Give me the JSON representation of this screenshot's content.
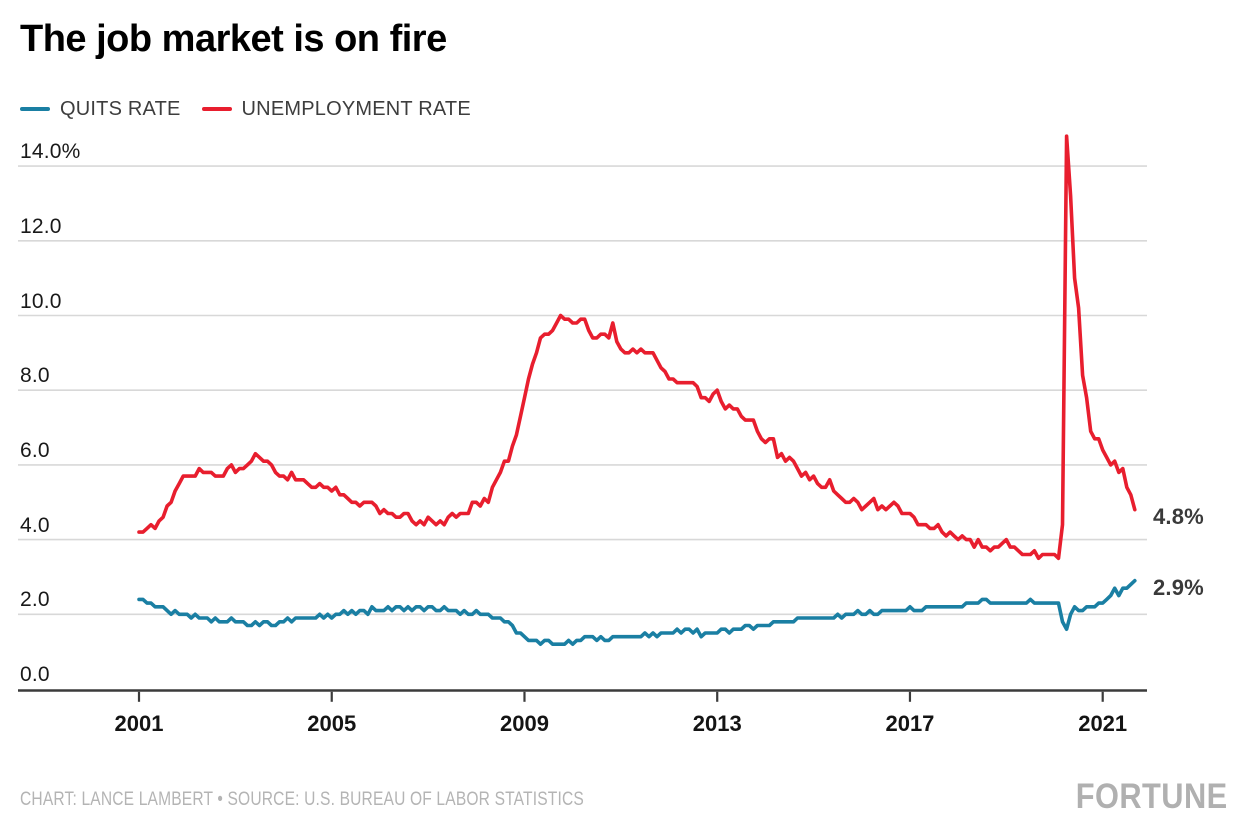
{
  "header": {
    "title": "The job market is on fire"
  },
  "footer": {
    "credit": "CHART: LANCE LAMBERT • SOURCE: U.S. BUREAU OF LABOR STATISTICS",
    "logo": "FORTUNE"
  },
  "colors": {
    "quits": "#1a7fa3",
    "unemployment": "#e81e2e",
    "grid": "#d8d8d8",
    "axis": "#3b3b3b",
    "end_label": "#3a3a3a",
    "title": "#000000",
    "footer_text": "#b4b4b4",
    "logo": "#b0b0b0"
  },
  "chart_data": {
    "type": "line",
    "title": "The job market is on fire",
    "xlabel": "",
    "ylabel": "",
    "grid": "horizontal",
    "legend_position": "top-left",
    "x_unit": "monthly, Jan 2001 – Sep 2021",
    "x_start_year": 2001,
    "x_ticks": [
      2001,
      2005,
      2009,
      2013,
      2017,
      2021
    ],
    "ylim": [
      0,
      14.9
    ],
    "y_ticks": [
      {
        "value": 14,
        "label": "14.0%"
      },
      {
        "value": 12,
        "label": "12.0"
      },
      {
        "value": 10,
        "label": "10.0"
      },
      {
        "value": 8,
        "label": "8.0"
      },
      {
        "value": 6,
        "label": "6.0"
      },
      {
        "value": 4,
        "label": "4.0"
      },
      {
        "value": 2,
        "label": "2.0"
      },
      {
        "value": 0,
        "label": "0.0"
      }
    ],
    "series": [
      {
        "id": "quits",
        "name": "QUITS RATE",
        "color": "#1a7fa3",
        "end_label": "2.9%",
        "values": [
          2.4,
          2.4,
          2.3,
          2.3,
          2.2,
          2.2,
          2.2,
          2.1,
          2.0,
          2.1,
          2.0,
          2.0,
          2.0,
          1.9,
          2.0,
          1.9,
          1.9,
          1.9,
          1.8,
          1.9,
          1.8,
          1.8,
          1.8,
          1.9,
          1.8,
          1.8,
          1.8,
          1.7,
          1.7,
          1.8,
          1.7,
          1.8,
          1.8,
          1.7,
          1.7,
          1.8,
          1.8,
          1.9,
          1.8,
          1.9,
          1.9,
          1.9,
          1.9,
          1.9,
          1.9,
          2.0,
          1.9,
          2.0,
          1.9,
          2.0,
          2.0,
          2.1,
          2.0,
          2.1,
          2.0,
          2.1,
          2.1,
          2.0,
          2.2,
          2.1,
          2.1,
          2.1,
          2.2,
          2.1,
          2.2,
          2.2,
          2.1,
          2.2,
          2.1,
          2.2,
          2.2,
          2.1,
          2.2,
          2.2,
          2.1,
          2.1,
          2.2,
          2.1,
          2.1,
          2.1,
          2.0,
          2.1,
          2.0,
          2.0,
          2.1,
          2.0,
          2.0,
          2.0,
          1.9,
          1.9,
          1.9,
          1.8,
          1.8,
          1.7,
          1.5,
          1.5,
          1.4,
          1.3,
          1.3,
          1.3,
          1.2,
          1.3,
          1.3,
          1.2,
          1.2,
          1.2,
          1.2,
          1.3,
          1.2,
          1.3,
          1.3,
          1.4,
          1.4,
          1.4,
          1.3,
          1.4,
          1.3,
          1.3,
          1.4,
          1.4,
          1.4,
          1.4,
          1.4,
          1.4,
          1.4,
          1.4,
          1.5,
          1.4,
          1.5,
          1.4,
          1.5,
          1.5,
          1.5,
          1.5,
          1.6,
          1.5,
          1.6,
          1.6,
          1.5,
          1.6,
          1.4,
          1.5,
          1.5,
          1.5,
          1.5,
          1.6,
          1.6,
          1.5,
          1.6,
          1.6,
          1.6,
          1.7,
          1.7,
          1.6,
          1.7,
          1.7,
          1.7,
          1.7,
          1.8,
          1.8,
          1.8,
          1.8,
          1.8,
          1.8,
          1.9,
          1.9,
          1.9,
          1.9,
          1.9,
          1.9,
          1.9,
          1.9,
          1.9,
          1.9,
          2.0,
          1.9,
          2.0,
          2.0,
          2.0,
          2.1,
          2.0,
          2.0,
          2.1,
          2.0,
          2.0,
          2.1,
          2.1,
          2.1,
          2.1,
          2.1,
          2.1,
          2.1,
          2.2,
          2.1,
          2.1,
          2.1,
          2.2,
          2.2,
          2.2,
          2.2,
          2.2,
          2.2,
          2.2,
          2.2,
          2.2,
          2.2,
          2.3,
          2.3,
          2.3,
          2.3,
          2.4,
          2.4,
          2.3,
          2.3,
          2.3,
          2.3,
          2.3,
          2.3,
          2.3,
          2.3,
          2.3,
          2.3,
          2.4,
          2.3,
          2.3,
          2.3,
          2.3,
          2.3,
          2.3,
          2.3,
          1.8,
          1.6,
          2.0,
          2.2,
          2.1,
          2.1,
          2.2,
          2.2,
          2.2,
          2.3,
          2.3,
          2.4,
          2.5,
          2.7,
          2.5,
          2.7,
          2.7,
          2.8,
          2.9
        ]
      },
      {
        "id": "unemployment",
        "name": "UNEMPLOYMENT RATE",
        "color": "#e81e2e",
        "end_label": "4.8%",
        "values": [
          4.2,
          4.2,
          4.3,
          4.4,
          4.3,
          4.5,
          4.6,
          4.9,
          5.0,
          5.3,
          5.5,
          5.7,
          5.7,
          5.7,
          5.7,
          5.9,
          5.8,
          5.8,
          5.8,
          5.7,
          5.7,
          5.7,
          5.9,
          6.0,
          5.8,
          5.9,
          5.9,
          6.0,
          6.1,
          6.3,
          6.2,
          6.1,
          6.1,
          6.0,
          5.8,
          5.7,
          5.7,
          5.6,
          5.8,
          5.6,
          5.6,
          5.6,
          5.5,
          5.4,
          5.4,
          5.5,
          5.4,
          5.4,
          5.3,
          5.4,
          5.2,
          5.2,
          5.1,
          5.0,
          5.0,
          4.9,
          5.0,
          5.0,
          5.0,
          4.9,
          4.7,
          4.8,
          4.7,
          4.7,
          4.6,
          4.6,
          4.7,
          4.7,
          4.5,
          4.4,
          4.5,
          4.4,
          4.6,
          4.5,
          4.4,
          4.5,
          4.4,
          4.6,
          4.7,
          4.6,
          4.7,
          4.7,
          4.7,
          5.0,
          5.0,
          4.9,
          5.1,
          5.0,
          5.4,
          5.6,
          5.8,
          6.1,
          6.1,
          6.5,
          6.8,
          7.3,
          7.8,
          8.3,
          8.7,
          9.0,
          9.4,
          9.5,
          9.5,
          9.6,
          9.8,
          10.0,
          9.9,
          9.9,
          9.8,
          9.8,
          9.9,
          9.9,
          9.6,
          9.4,
          9.4,
          9.5,
          9.5,
          9.4,
          9.8,
          9.3,
          9.1,
          9.0,
          9.0,
          9.1,
          9.0,
          9.1,
          9.0,
          9.0,
          9.0,
          8.8,
          8.6,
          8.5,
          8.3,
          8.3,
          8.2,
          8.2,
          8.2,
          8.2,
          8.2,
          8.1,
          7.8,
          7.8,
          7.7,
          7.9,
          8.0,
          7.7,
          7.5,
          7.6,
          7.5,
          7.5,
          7.3,
          7.2,
          7.2,
          7.2,
          6.9,
          6.7,
          6.6,
          6.7,
          6.7,
          6.2,
          6.3,
          6.1,
          6.2,
          6.1,
          5.9,
          5.7,
          5.8,
          5.6,
          5.7,
          5.5,
          5.4,
          5.4,
          5.6,
          5.3,
          5.2,
          5.1,
          5.0,
          5.0,
          5.1,
          5.0,
          4.8,
          4.9,
          5.0,
          5.1,
          4.8,
          4.9,
          4.8,
          4.9,
          5.0,
          4.9,
          4.7,
          4.7,
          4.7,
          4.6,
          4.4,
          4.4,
          4.4,
          4.3,
          4.3,
          4.4,
          4.2,
          4.1,
          4.2,
          4.1,
          4.0,
          4.1,
          4.0,
          4.0,
          3.8,
          4.0,
          3.8,
          3.8,
          3.7,
          3.8,
          3.8,
          3.9,
          4.0,
          3.8,
          3.8,
          3.7,
          3.6,
          3.6,
          3.6,
          3.7,
          3.5,
          3.6,
          3.6,
          3.6,
          3.6,
          3.5,
          4.4,
          14.8,
          13.2,
          11.0,
          10.2,
          8.4,
          7.8,
          6.9,
          6.7,
          6.7,
          6.4,
          6.2,
          6.0,
          6.1,
          5.8,
          5.9,
          5.4,
          5.2,
          4.8
        ]
      }
    ]
  }
}
